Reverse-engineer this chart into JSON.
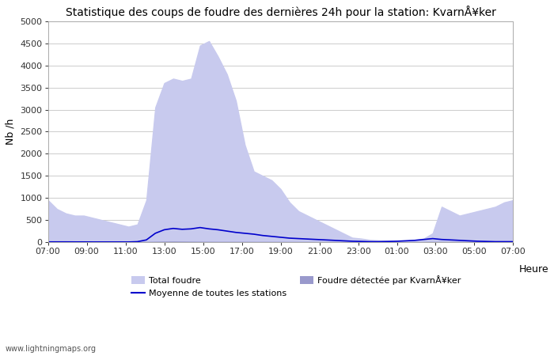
{
  "title": "Statistique des coups de foudre des dernières 24h pour la station: KvarnÅ¥ker",
  "ylabel": "Nb /h",
  "xlabel_right": "Heure",
  "ylim": [
    0,
    5000
  ],
  "yticks": [
    0,
    500,
    1000,
    1500,
    2000,
    2500,
    3000,
    3500,
    4000,
    4500,
    5000
  ],
  "xtick_labels": [
    "07:00",
    "09:00",
    "11:00",
    "13:00",
    "15:00",
    "17:00",
    "19:00",
    "21:00",
    "23:00",
    "01:00",
    "03:00",
    "05:00",
    "07:00"
  ],
  "background_color": "#ffffff",
  "plot_bg_color": "#ffffff",
  "grid_color": "#cccccc",
  "fill_total_color": "#c8caee",
  "fill_local_color": "#9999cc",
  "line_color": "#0000cc",
  "watermark": "www.lightningmaps.org",
  "legend_total": "Total foudre",
  "legend_mean": "Moyenne de toutes les stations",
  "legend_local": "Foudre détectée par KvarnÅ¥ker",
  "total_foudre": [
    950,
    750,
    650,
    600,
    600,
    550,
    500,
    450,
    400,
    350,
    400,
    950,
    3050,
    3600,
    3700,
    3650,
    3700,
    4450,
    4550,
    4200,
    3800,
    3200,
    2200,
    1600,
    1500,
    1400,
    1200,
    900,
    700,
    600,
    500,
    400,
    300,
    200,
    100,
    80,
    50,
    40,
    30,
    20,
    30,
    50,
    80,
    200,
    800,
    700,
    600,
    650,
    700,
    750,
    800,
    900,
    950
  ],
  "local_foudre": [
    5,
    3,
    3,
    2,
    2,
    1,
    1,
    1,
    1,
    1,
    1,
    2,
    5,
    8,
    10,
    8,
    6,
    5,
    4,
    3,
    3,
    3,
    3,
    2,
    2,
    2,
    2,
    1,
    1,
    1,
    1,
    1,
    0,
    0,
    0,
    0,
    0,
    0,
    0,
    0,
    0,
    0,
    0,
    1,
    2,
    2,
    2,
    2,
    2,
    2,
    2,
    3,
    5
  ],
  "moyenne": [
    5,
    5,
    5,
    4,
    4,
    3,
    3,
    3,
    3,
    3,
    10,
    50,
    200,
    280,
    310,
    290,
    300,
    330,
    300,
    280,
    250,
    220,
    200,
    180,
    150,
    130,
    110,
    90,
    80,
    70,
    60,
    50,
    40,
    30,
    20,
    15,
    10,
    10,
    15,
    20,
    30,
    40,
    60,
    80,
    60,
    50,
    40,
    30,
    20,
    15,
    10,
    10,
    10
  ]
}
